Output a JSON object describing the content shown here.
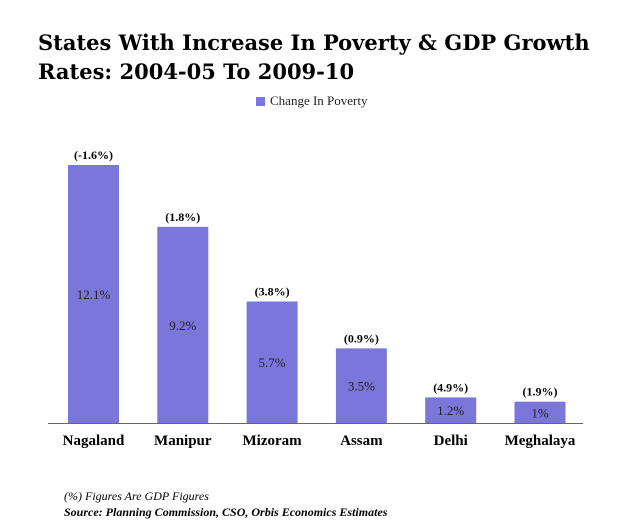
{
  "title": "States With Increase In Poverty & GDP Growth Rates: 2004-05 To 2009-10",
  "notes": {
    "gdp_note": "(%) Figures Are GDP Figures",
    "source": "Source: Planning Commission, CSO, Orbis Economics Estimates"
  },
  "colors": {
    "bar": "#7b76d9",
    "axis": "#666666"
  },
  "chart_data": {
    "type": "bar",
    "title": "States With Increase In Poverty & GDP Growth Rates: 2004-05 To 2009-10",
    "categories": [
      "Nagaland",
      "Manipur",
      "Mizoram",
      "Assam",
      "Delhi",
      "Meghalaya"
    ],
    "series": [
      {
        "name": "Change In Poverty",
        "values": [
          12.1,
          9.2,
          5.7,
          3.5,
          1.2,
          1
        ],
        "value_labels": [
          "12.1%",
          "9.2%",
          "5.7%",
          "3.5%",
          "1.2%",
          "1%"
        ]
      }
    ],
    "annotations": [
      "(-1.6%)",
      "(1.8%)",
      "(3.8%)",
      "(0.9%)",
      "(4.9%)",
      "(1.9%)"
    ],
    "gdp_growth": [
      -1.6,
      1.8,
      3.8,
      0.9,
      4.9,
      1.9
    ],
    "ylim": [
      0,
      12.1
    ],
    "legend": "top-center",
    "grid": false
  }
}
